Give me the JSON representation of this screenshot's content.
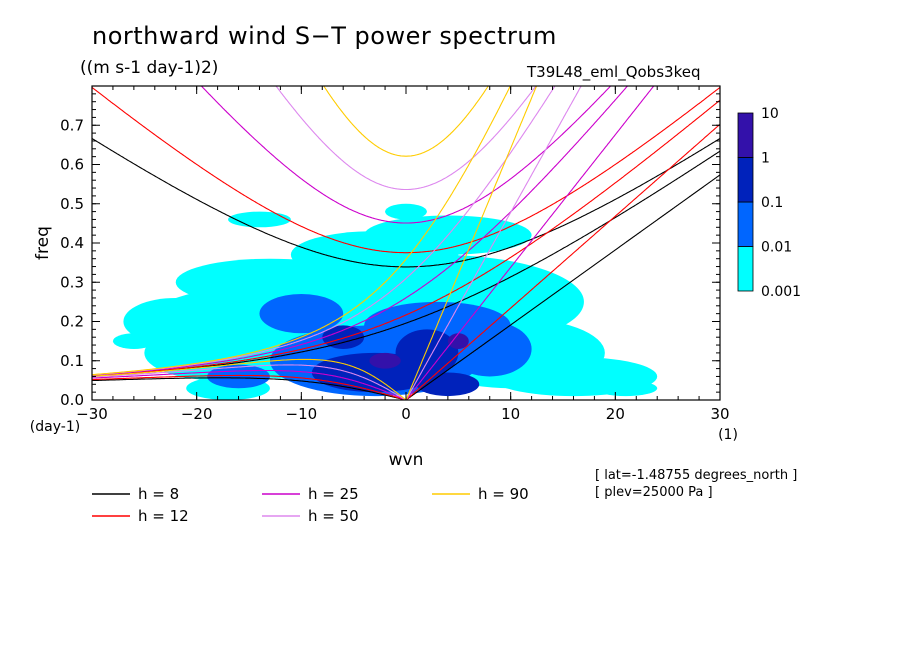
{
  "title": "northward wind S−T power spectrum",
  "units": "((m s-1 day-1)2)",
  "run_id": "T39L48_eml_Qobs3keq",
  "info": [
    "[ lat=-1.48755 degrees_north ]",
    "[ plev=25000 Pa ]"
  ],
  "chart_data": {
    "type": "heatmap",
    "xlabel": "wvn",
    "ylabel": "freq",
    "x_unit_label": "(1)",
    "y_unit_label": "(day-1)",
    "xlim": [
      -30,
      30
    ],
    "ylim": [
      0,
      0.8
    ],
    "xticks": [
      -30,
      -20,
      -10,
      0,
      10,
      20,
      30
    ],
    "xtick_labels": [
      "−30",
      "−20",
      "−10",
      "0",
      "10",
      "20",
      "30"
    ],
    "yticks": [
      0.0,
      0.1,
      0.2,
      0.3,
      0.4,
      0.5,
      0.6,
      0.7
    ],
    "ytick_labels": [
      "0.0",
      "0.1",
      "0.2",
      "0.3",
      "0.4",
      "0.5",
      "0.6",
      "0.7"
    ],
    "colorbar": {
      "levels": [
        "0.001",
        "0.01",
        "0.1",
        "1",
        "10"
      ],
      "colors": [
        "#00ffff",
        "#0066ff",
        "#0022bb",
        "#3311aa"
      ]
    },
    "regions": [
      {
        "level": 0,
        "ellipses": [
          [
            -7,
            0.18,
            19,
            0.13
          ],
          [
            3,
            0.25,
            14,
            0.12
          ],
          [
            -13,
            0.3,
            9,
            0.06
          ],
          [
            10,
            0.12,
            9,
            0.09
          ],
          [
            16,
            0.06,
            8,
            0.05
          ],
          [
            -18,
            0.12,
            7,
            0.07
          ],
          [
            -3,
            0.37,
            8,
            0.06
          ],
          [
            -22,
            0.2,
            5,
            0.06
          ],
          [
            4,
            0.42,
            8,
            0.05
          ],
          [
            -14,
            0.46,
            3,
            0.02
          ],
          [
            0,
            0.48,
            2,
            0.02
          ],
          [
            -17,
            0.03,
            4,
            0.03
          ],
          [
            21,
            0.03,
            3,
            0.02
          ],
          [
            -26,
            0.15,
            2,
            0.02
          ]
        ]
      },
      {
        "level": 1,
        "ellipses": [
          [
            -3,
            0.1,
            10,
            0.09
          ],
          [
            3,
            0.19,
            7,
            0.06
          ],
          [
            8,
            0.13,
            4,
            0.07
          ],
          [
            -10,
            0.22,
            4,
            0.05
          ],
          [
            -16,
            0.06,
            3,
            0.03
          ]
        ]
      },
      {
        "level": 2,
        "ellipses": [
          [
            -3,
            0.07,
            6,
            0.05
          ],
          [
            2,
            0.12,
            3,
            0.06
          ],
          [
            -6,
            0.16,
            2,
            0.03
          ],
          [
            4,
            0.04,
            3,
            0.03
          ]
        ]
      },
      {
        "level": 3,
        "ellipses": [
          [
            -2,
            0.1,
            1.5,
            0.02
          ],
          [
            5,
            0.15,
            1.0,
            0.02
          ]
        ]
      }
    ],
    "dispersion_curves": [
      {
        "h": 8,
        "label": "h =  8",
        "color": "#000000"
      },
      {
        "h": 12,
        "label": "h = 12",
        "color": "#ff0000"
      },
      {
        "h": 25,
        "label": "h = 25",
        "color": "#cc00cc"
      },
      {
        "h": 50,
        "label": "h = 50",
        "color": "#dd88ee"
      },
      {
        "h": 90,
        "label": "h = 90",
        "color": "#ffcc00"
      }
    ]
  }
}
